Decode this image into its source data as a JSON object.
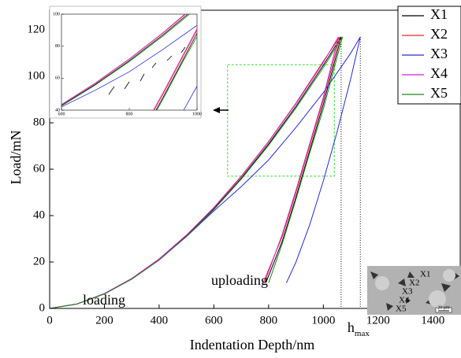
{
  "chart_data": {
    "type": "line",
    "x_label": "Indentation Depth/nm",
    "y_label": "Load/mN",
    "xlim": [
      0,
      1500
    ],
    "ylim": [
      0,
      128.5
    ],
    "xticks": [
      0,
      200,
      400,
      600,
      800,
      1000,
      1200,
      1400
    ],
    "yticks": [
      0,
      20,
      40,
      60,
      80,
      100,
      120
    ],
    "series": [
      {
        "name": "X1",
        "color": "#000000",
        "x": [
          0,
          100,
          200,
          300,
          400,
          500,
          600,
          700,
          800,
          900,
          1000,
          1065,
          1000,
          950,
          900,
          850,
          790
        ],
        "values": [
          0,
          1.9,
          6.3,
          12.7,
          21,
          31.2,
          42.9,
          56.1,
          70.9,
          87.1,
          104.8,
          117,
          88,
          68,
          48,
          29,
          11
        ]
      },
      {
        "name": "X2",
        "color": "#e8262a",
        "x": [
          0,
          100,
          200,
          300,
          400,
          500,
          600,
          700,
          800,
          900,
          1000,
          1060,
          1000,
          950,
          900,
          850,
          780
        ],
        "values": [
          0,
          1.9,
          6.4,
          12.9,
          21.3,
          31.6,
          43.5,
          57,
          72,
          88.5,
          106.5,
          117,
          90,
          70,
          50,
          31,
          11
        ]
      },
      {
        "name": "X3",
        "color": "#2a2ad6",
        "x": [
          0,
          100,
          200,
          300,
          400,
          500,
          600,
          700,
          800,
          900,
          1000,
          1100,
          1135,
          1100,
          1050,
          1000,
          950,
          900,
          865
        ],
        "values": [
          0,
          1.9,
          6.3,
          12.7,
          21,
          31,
          42,
          52.5,
          64,
          78,
          93,
          110,
          117,
          99,
          76,
          55,
          36,
          20,
          11
        ]
      },
      {
        "name": "X4",
        "color": "#d21fd2",
        "x": [
          0,
          100,
          200,
          300,
          400,
          500,
          600,
          700,
          800,
          900,
          1000,
          1055,
          1000,
          950,
          900,
          850,
          785
        ],
        "values": [
          0,
          1.9,
          6.4,
          12.9,
          21.3,
          31.6,
          43.4,
          56.8,
          71.8,
          88.2,
          106,
          117,
          91,
          71,
          51,
          32,
          11
        ]
      },
      {
        "name": "X5",
        "color": "#1a8a1a",
        "x": [
          0,
          100,
          200,
          300,
          400,
          500,
          600,
          700,
          800,
          900,
          1000,
          1070,
          1000,
          950,
          900,
          850,
          800
        ],
        "values": [
          0,
          1.9,
          6.2,
          12.6,
          20.8,
          31,
          42.6,
          55.7,
          70.3,
          86.4,
          103.8,
          117,
          86,
          67,
          47,
          28,
          11
        ]
      }
    ],
    "legend": "top-right",
    "annotations": {
      "loading": "loading",
      "unloading": "uploading",
      "hmax": "h",
      "hmax_sub": "max"
    },
    "hmax_lines": [
      1065,
      1135
    ],
    "zoom_box": {
      "xlim": [
        650,
        1040
      ],
      "ylim": [
        57,
        105
      ]
    },
    "inset": {
      "xlim": [
        600,
        1000
      ],
      "ylim": [
        40,
        100
      ],
      "xticks": [
        600,
        800,
        1000
      ],
      "yticks": [
        40,
        60,
        80,
        100
      ]
    },
    "micrograph": {
      "labels": [
        "X1",
        "X2",
        "X3",
        "X4",
        "X5"
      ],
      "scale_bar": "20 μm"
    }
  }
}
